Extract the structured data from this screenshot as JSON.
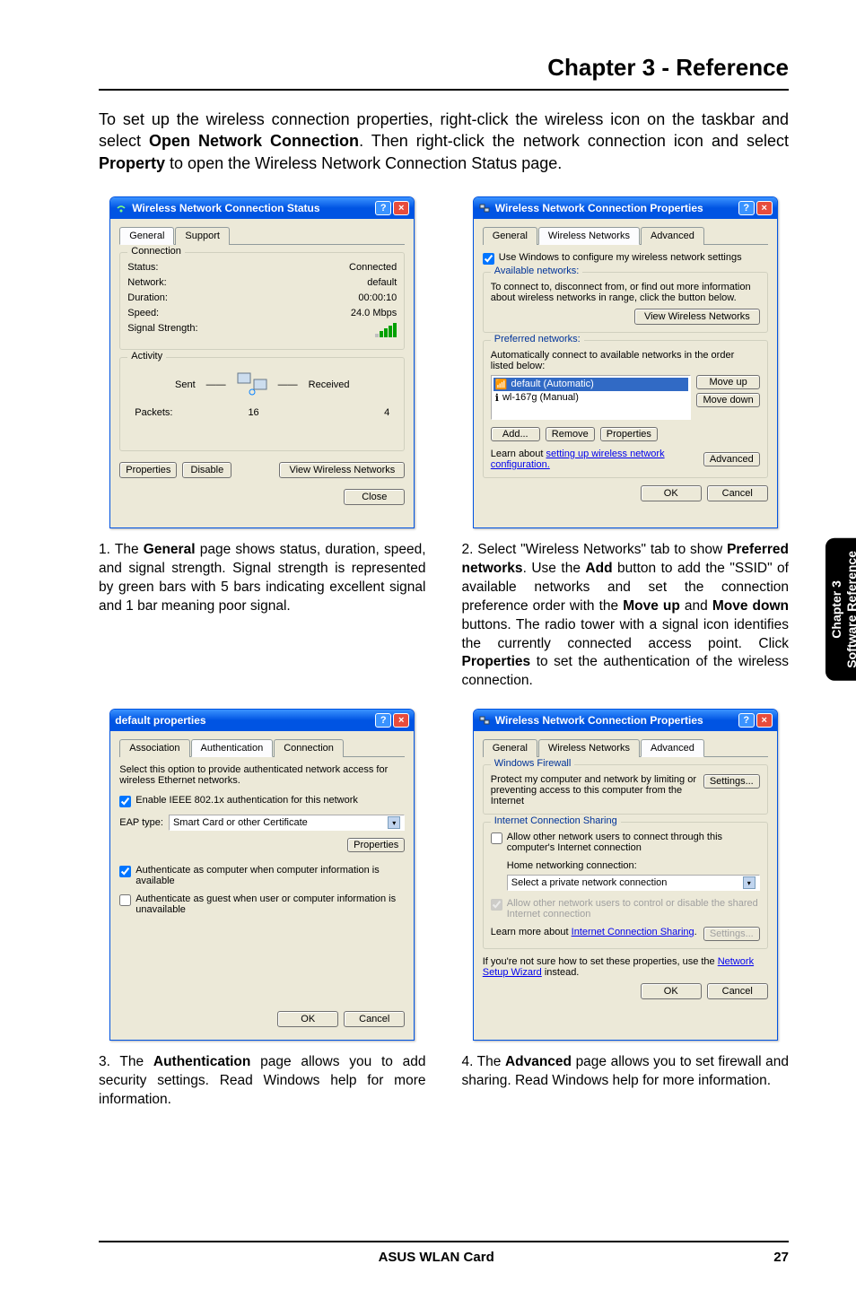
{
  "chapter_title": "Chapter 3 - Reference",
  "intro_html": "To set up the wireless connection properties, right-click the wireless icon on the taskbar and select <b>Open Network Connection</b>. Then right-click the network connection icon and select <b>Property</b> to open the Wireless Network Connection Status page.",
  "side_tab": {
    "line1": "Chapter 3",
    "line2": "Software Reference"
  },
  "dialog1": {
    "title": "Wireless Network Connection Status",
    "tabs": [
      "General",
      "Support"
    ],
    "active_tab": 0,
    "conn_group": "Connection",
    "rows": {
      "status_l": "Status:",
      "status_v": "Connected",
      "network_l": "Network:",
      "network_v": "default",
      "duration_l": "Duration:",
      "duration_v": "00:00:10",
      "speed_l": "Speed:",
      "speed_v": "24.0 Mbps",
      "signal_l": "Signal Strength:"
    },
    "activity_group": "Activity",
    "activity": {
      "sent": "Sent",
      "received": "Received",
      "packets_l": "Packets:",
      "packets_sent": "16",
      "packets_recv": "4"
    },
    "buttons": {
      "properties": "Properties",
      "disable": "Disable",
      "view": "View Wireless Networks",
      "close": "Close"
    }
  },
  "dialog2": {
    "title": "Wireless Network Connection Properties",
    "tabs": [
      "General",
      "Wireless Networks",
      "Advanced"
    ],
    "active_tab": 1,
    "use_windows": "Use Windows to configure my wireless network settings",
    "avail_group": "Available networks:",
    "avail_text": "To connect to, disconnect from, or find out more information about wireless networks in range, click the button below.",
    "view_btn": "View Wireless Networks",
    "pref_group": "Preferred networks:",
    "pref_text": "Automatically connect to available networks in the order listed below:",
    "items": {
      "i1": "default (Automatic)",
      "i2": "wl-167g (Manual)"
    },
    "btns": {
      "moveup": "Move up",
      "movedown": "Move down",
      "add": "Add...",
      "remove": "Remove",
      "properties": "Properties",
      "advanced": "Advanced"
    },
    "learn": "Learn about ",
    "learn_link": "setting up wireless network configuration.",
    "ok": "OK",
    "cancel": "Cancel"
  },
  "dialog3": {
    "title": "default properties",
    "tabs": [
      "Association",
      "Authentication",
      "Connection"
    ],
    "active_tab": 1,
    "desc": "Select this option to provide authenticated network access for wireless Ethernet networks.",
    "enable": "Enable IEEE 802.1x authentication for this network",
    "eap_l": "EAP type:",
    "eap_v": "Smart Card or other Certificate",
    "props_btn": "Properties",
    "auth1": "Authenticate as computer when computer information is available",
    "auth2": "Authenticate as guest when user or computer information is unavailable",
    "ok": "OK",
    "cancel": "Cancel"
  },
  "dialog4": {
    "title": "Wireless Network Connection Properties",
    "tabs": [
      "General",
      "Wireless Networks",
      "Advanced"
    ],
    "active_tab": 2,
    "fw_group": "Windows Firewall",
    "fw_text": "Protect my computer and network by limiting or preventing access to this computer from the Internet",
    "settings": "Settings...",
    "ics_group": "Internet Connection Sharing",
    "ics_allow": "Allow other network users to connect through this computer's Internet connection",
    "home_l": "Home networking connection:",
    "home_v": "Select a private network connection",
    "ics_ctrl": "Allow other network users to control or disable the shared Internet connection",
    "learn": "Learn more about ",
    "learn_link": "Internet Connection Sharing",
    "wiz1": "If you're not sure how to set these properties, use the ",
    "wiz_link": "Network Setup Wizard",
    "wiz2": " instead.",
    "ok": "OK",
    "cancel": "Cancel"
  },
  "cap1": "1. The <b>General</b> page shows status, duration, speed, and signal strength. Signal strength is represented by green bars with 5 bars indicating excellent signal and 1 bar meaning poor signal.",
  "cap2": "2. Select \"Wireless Networks\" tab to show <b>Preferred networks</b>. Use the <b>Add</b> button to add the \"SSID\" of available networks and set the connection preference order with the <b>Move up</b> and <b>Move down</b> buttons. The radio tower with a signal icon identifies the currently connected access point. Click <b>Properties</b> to set the authentication of the wireless connection.",
  "cap3": "3. The <b>Authentication</b> page allows you to add security settings. Read Windows help for more information.",
  "cap4": "4. The <b>Advanced</b> page allows you to set firewall and sharing. Read Windows help for more information.",
  "footer": {
    "center": "ASUS WLAN Card",
    "page": "27"
  }
}
